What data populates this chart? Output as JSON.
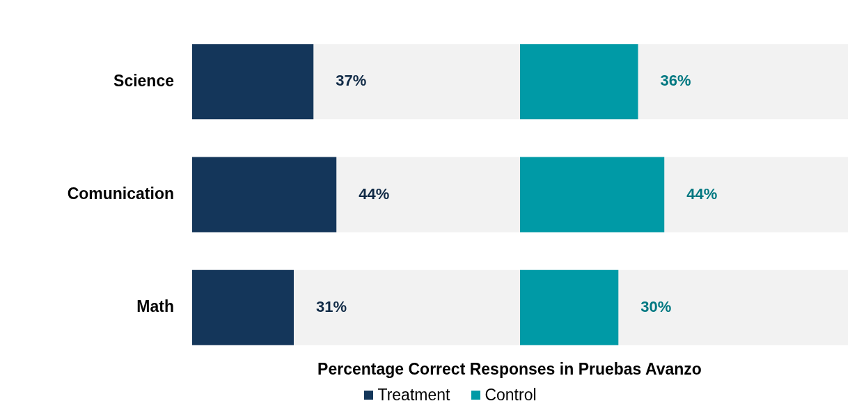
{
  "chart_data": [
    {
      "type": "bar",
      "orientation": "horizontal",
      "categories": [
        "Science",
        "Comunication",
        "Math"
      ],
      "series": [
        {
          "name": "Treatment",
          "color": "#14365a",
          "values": [
            37,
            44,
            31
          ],
          "value_labels": [
            "37%",
            "44%",
            "31%"
          ]
        }
      ],
      "xlim": [
        0,
        100
      ],
      "tick_labels": "y",
      "xlabel": "Percentage Correct Responses in Pruebas Avanzo",
      "legend": "bottom"
    },
    {
      "type": "bar",
      "orientation": "horizontal",
      "categories": [
        null,
        null,
        null
      ],
      "series": [
        {
          "name": "Control",
          "color": "#009aa6",
          "values": [
            36,
            44,
            30
          ],
          "value_labels": [
            "36%",
            "44%",
            "30%"
          ]
        }
      ],
      "xlim": [
        0,
        100
      ],
      "tick_labels": false,
      "legend": "bottom"
    }
  ]
}
